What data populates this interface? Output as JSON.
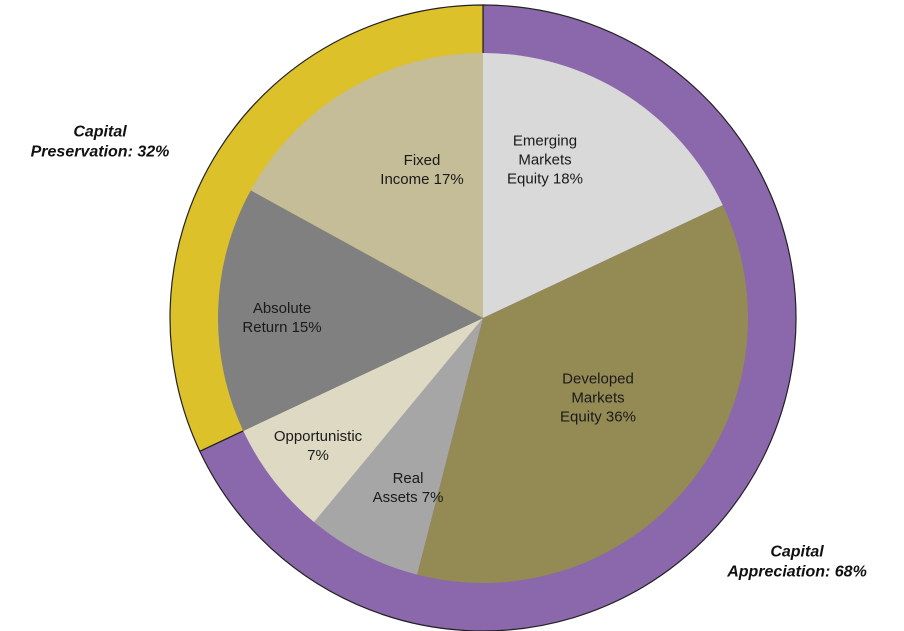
{
  "chart_data": [
    {
      "type": "pie",
      "values": [
        18,
        36,
        7,
        7,
        15,
        17
      ],
      "value_labels": [
        "Emerging Markets Equity 18%",
        "Developed Markets Equity 36%",
        "Real Assets 7%",
        "Opportunistic 7%",
        "Absolute Return 15%",
        "Fixed Income 17%"
      ],
      "colors": [
        "#d9d9d9",
        "#948a54",
        "#a6a6a6",
        "#ddd9c3",
        "#808080",
        "#c4bd97"
      ]
    },
    {
      "type": "donut",
      "values": [
        68,
        32
      ],
      "value_labels": [
        "Capital Appreciation: 68%",
        "Capital Preservation: 32%"
      ],
      "colors": [
        "#8b67ab",
        "#dcc12a"
      ]
    }
  ]
}
